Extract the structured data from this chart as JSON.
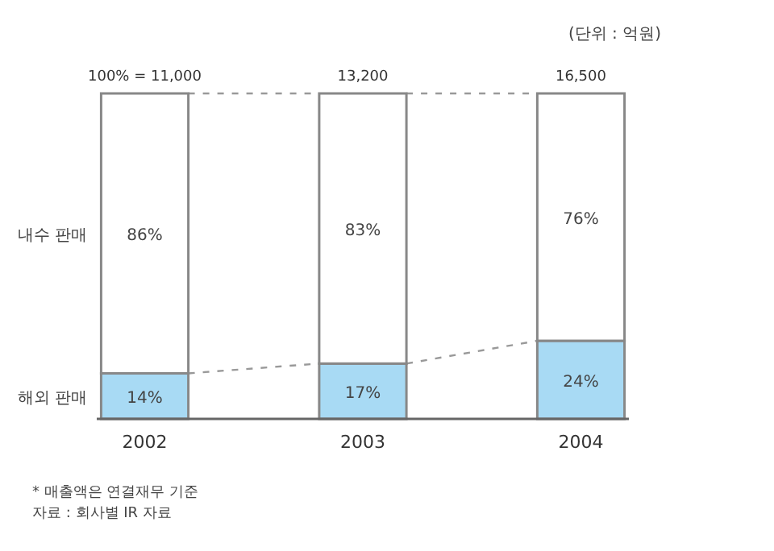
{
  "chart_data": {
    "type": "bar",
    "stacked": true,
    "categories": [
      "2002",
      "2003",
      "2004"
    ],
    "series": [
      {
        "name": "해외 판매",
        "color": "#a8daf4",
        "values": [
          14,
          17,
          24
        ],
        "value_labels": [
          "14%",
          "17%",
          "24%"
        ]
      },
      {
        "name": "내수 판매",
        "color": "#ffffff",
        "values": [
          86,
          83,
          76
        ],
        "value_labels": [
          "86%",
          "83%",
          "76%"
        ]
      }
    ],
    "ylim": [
      0,
      100
    ],
    "tick_labels": "x",
    "annotations": [
      {
        "text": "100% = 11,000",
        "x": "2002",
        "y": 100
      },
      {
        "text": "13,200",
        "x": "2003",
        "y": 100
      },
      {
        "text": "16,500",
        "x": "2004",
        "y": 100
      },
      "(단위 : 억원)",
      "* 매출액은 연결재무 기준",
      "자료 : 회사별 IR 자료"
    ]
  }
}
